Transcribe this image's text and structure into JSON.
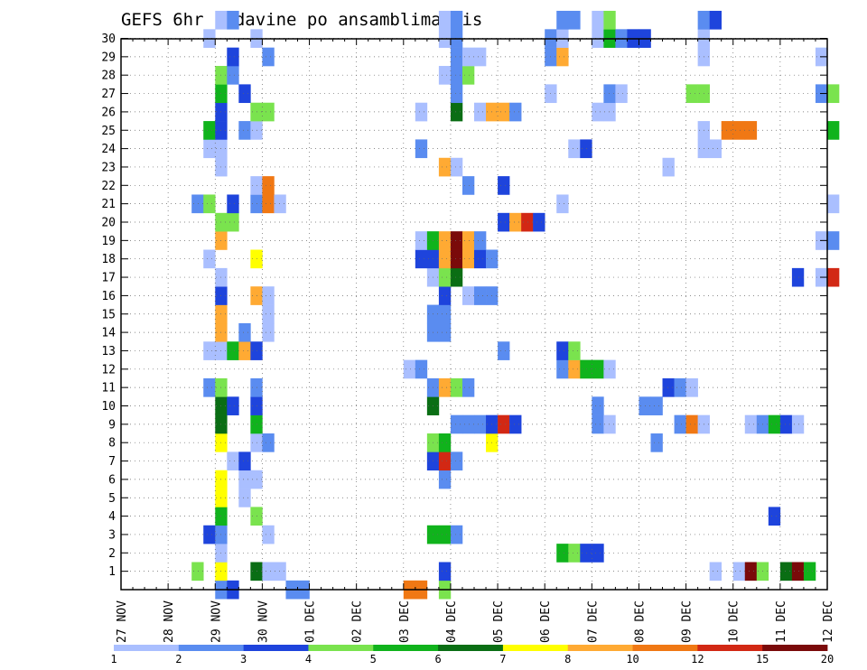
{
  "chart_data": {
    "type": "heatmap",
    "title": "GEFS 6hr padavine po ansamblima Nis",
    "xlabel": "",
    "ylabel": "",
    "x_ticks": [
      "27 NOV",
      "28 NOV",
      "29 NOV",
      "30 NOV",
      "01 DEC",
      "02 DEC",
      "03 DEC",
      "04 DEC",
      "05 DEC",
      "06 DEC",
      "07 DEC",
      "08 DEC",
      "09 DEC",
      "10 DEC",
      "11 DEC",
      "12 DEC"
    ],
    "y_ticks": [
      "1",
      "2",
      "3",
      "4",
      "5",
      "6",
      "7",
      "8",
      "9",
      "10",
      "11",
      "12",
      "13",
      "14",
      "15",
      "16",
      "17",
      "18",
      "19",
      "20",
      "21",
      "22",
      "23",
      "24",
      "25",
      "26",
      "27",
      "28",
      "29",
      "30"
    ],
    "xlim": [
      0,
      60
    ],
    "ylim": [
      0,
      30
    ],
    "grid": true,
    "legend": {
      "placement": "bottom",
      "labels": [
        "1",
        "2",
        "3",
        "4",
        "5",
        "6",
        "7",
        "8",
        "10",
        "12",
        "15",
        "20"
      ],
      "colors": [
        "#aabfff",
        "#5a8cf0",
        "#1e44dc",
        "#7ae34e",
        "#10b31c",
        "#0a6e14",
        "#ffff00",
        "#ffaa33",
        "#f07814",
        "#d22814",
        "#7a0a0a"
      ]
    },
    "cells": [
      [
        8,
        0,
        2
      ],
      [
        9,
        0,
        3
      ],
      [
        14,
        0,
        2
      ],
      [
        15,
        0,
        2
      ],
      [
        24,
        0,
        9
      ],
      [
        25,
        0,
        9
      ],
      [
        27,
        0,
        4
      ],
      [
        6,
        1,
        4
      ],
      [
        8,
        1,
        7
      ],
      [
        11,
        1,
        6
      ],
      [
        12,
        1,
        1
      ],
      [
        13,
        1,
        1
      ],
      [
        27,
        1,
        3
      ],
      [
        50,
        1,
        1
      ],
      [
        52,
        1,
        1
      ],
      [
        53,
        1,
        11
      ],
      [
        54,
        1,
        4
      ],
      [
        56,
        1,
        6
      ],
      [
        57,
        1,
        11
      ],
      [
        58,
        1,
        5
      ],
      [
        8,
        2,
        1
      ],
      [
        37,
        2,
        5
      ],
      [
        38,
        2,
        4
      ],
      [
        39,
        2,
        3
      ],
      [
        40,
        2,
        3
      ],
      [
        7,
        3,
        3
      ],
      [
        8,
        3,
        2
      ],
      [
        12,
        3,
        1
      ],
      [
        26,
        3,
        5
      ],
      [
        27,
        3,
        5
      ],
      [
        28,
        3,
        2
      ],
      [
        8,
        4,
        5
      ],
      [
        11,
        4,
        4
      ],
      [
        55,
        4,
        3
      ],
      [
        8,
        5,
        7
      ],
      [
        10,
        5,
        1
      ],
      [
        8,
        6,
        7
      ],
      [
        10,
        6,
        1
      ],
      [
        11,
        6,
        1
      ],
      [
        27,
        6,
        2
      ],
      [
        9,
        7,
        1
      ],
      [
        10,
        7,
        3
      ],
      [
        26,
        7,
        3
      ],
      [
        27,
        7,
        10
      ],
      [
        28,
        7,
        2
      ],
      [
        8,
        8,
        7
      ],
      [
        11,
        8,
        1
      ],
      [
        12,
        8,
        2
      ],
      [
        26,
        8,
        4
      ],
      [
        27,
        8,
        5
      ],
      [
        31,
        8,
        7
      ],
      [
        45,
        8,
        2
      ],
      [
        8,
        9,
        6
      ],
      [
        11,
        9,
        5
      ],
      [
        28,
        9,
        2
      ],
      [
        29,
        9,
        2
      ],
      [
        30,
        9,
        2
      ],
      [
        31,
        9,
        3
      ],
      [
        32,
        9,
        10
      ],
      [
        33,
        9,
        3
      ],
      [
        40,
        9,
        2
      ],
      [
        41,
        9,
        1
      ],
      [
        47,
        9,
        2
      ],
      [
        48,
        9,
        9
      ],
      [
        49,
        9,
        1
      ],
      [
        53,
        9,
        1
      ],
      [
        54,
        9,
        2
      ],
      [
        55,
        9,
        5
      ],
      [
        56,
        9,
        3
      ],
      [
        57,
        9,
        1
      ],
      [
        8,
        10,
        6
      ],
      [
        9,
        10,
        3
      ],
      [
        11,
        10,
        3
      ],
      [
        26,
        10,
        6
      ],
      [
        40,
        10,
        2
      ],
      [
        44,
        10,
        2
      ],
      [
        45,
        10,
        2
      ],
      [
        7,
        11,
        2
      ],
      [
        8,
        11,
        4
      ],
      [
        11,
        11,
        2
      ],
      [
        26,
        11,
        2
      ],
      [
        27,
        11,
        8
      ],
      [
        28,
        11,
        4
      ],
      [
        29,
        11,
        2
      ],
      [
        46,
        11,
        3
      ],
      [
        47,
        11,
        2
      ],
      [
        48,
        11,
        1
      ],
      [
        24,
        12,
        1
      ],
      [
        25,
        12,
        2
      ],
      [
        37,
        12,
        2
      ],
      [
        38,
        12,
        8
      ],
      [
        39,
        12,
        5
      ],
      [
        40,
        12,
        5
      ],
      [
        41,
        12,
        1
      ],
      [
        7,
        13,
        1
      ],
      [
        8,
        13,
        1
      ],
      [
        9,
        13,
        5
      ],
      [
        10,
        13,
        8
      ],
      [
        11,
        13,
        3
      ],
      [
        32,
        13,
        2
      ],
      [
        37,
        13,
        3
      ],
      [
        38,
        13,
        4
      ],
      [
        8,
        14,
        8
      ],
      [
        10,
        14,
        2
      ],
      [
        12,
        14,
        1
      ],
      [
        26,
        14,
        2
      ],
      [
        27,
        14,
        2
      ],
      [
        8,
        15,
        8
      ],
      [
        12,
        15,
        1
      ],
      [
        26,
        15,
        2
      ],
      [
        27,
        15,
        2
      ],
      [
        8,
        16,
        3
      ],
      [
        11,
        16,
        8
      ],
      [
        12,
        16,
        1
      ],
      [
        27,
        16,
        3
      ],
      [
        29,
        16,
        1
      ],
      [
        30,
        16,
        2
      ],
      [
        31,
        16,
        2
      ],
      [
        8,
        17,
        1
      ],
      [
        26,
        17,
        1
      ],
      [
        27,
        17,
        4
      ],
      [
        28,
        17,
        6
      ],
      [
        57,
        17,
        3
      ],
      [
        59,
        17,
        1
      ],
      [
        60,
        17,
        10
      ],
      [
        7,
        18,
        1
      ],
      [
        11,
        18,
        7
      ],
      [
        25,
        18,
        3
      ],
      [
        26,
        18,
        3
      ],
      [
        27,
        18,
        8
      ],
      [
        28,
        18,
        11
      ],
      [
        29,
        18,
        8
      ],
      [
        30,
        18,
        3
      ],
      [
        31,
        18,
        2
      ],
      [
        8,
        19,
        8
      ],
      [
        25,
        19,
        1
      ],
      [
        26,
        19,
        5
      ],
      [
        27,
        19,
        8
      ],
      [
        28,
        19,
        11
      ],
      [
        29,
        19,
        8
      ],
      [
        30,
        19,
        2
      ],
      [
        59,
        19,
        1
      ],
      [
        60,
        19,
        2
      ],
      [
        8,
        20,
        4
      ],
      [
        9,
        20,
        4
      ],
      [
        32,
        20,
        3
      ],
      [
        33,
        20,
        8
      ],
      [
        34,
        20,
        10
      ],
      [
        35,
        20,
        3
      ],
      [
        6,
        21,
        2
      ],
      [
        7,
        21,
        4
      ],
      [
        9,
        21,
        3
      ],
      [
        11,
        21,
        2
      ],
      [
        12,
        21,
        9
      ],
      [
        13,
        21,
        1
      ],
      [
        37,
        21,
        1
      ],
      [
        60,
        21,
        1
      ],
      [
        11,
        22,
        1
      ],
      [
        12,
        22,
        9
      ],
      [
        29,
        22,
        2
      ],
      [
        32,
        22,
        3
      ],
      [
        8,
        23,
        1
      ],
      [
        27,
        23,
        8
      ],
      [
        28,
        23,
        1
      ],
      [
        46,
        23,
        1
      ],
      [
        7,
        24,
        1
      ],
      [
        8,
        24,
        1
      ],
      [
        25,
        24,
        2
      ],
      [
        38,
        24,
        1
      ],
      [
        39,
        24,
        3
      ],
      [
        49,
        24,
        1
      ],
      [
        50,
        24,
        1
      ],
      [
        7,
        25,
        5
      ],
      [
        8,
        25,
        3
      ],
      [
        10,
        25,
        2
      ],
      [
        11,
        25,
        1
      ],
      [
        49,
        25,
        1
      ],
      [
        51,
        25,
        9
      ],
      [
        52,
        25,
        9
      ],
      [
        53,
        25,
        9
      ],
      [
        60,
        25,
        5
      ],
      [
        8,
        26,
        3
      ],
      [
        11,
        26,
        4
      ],
      [
        12,
        26,
        4
      ],
      [
        25,
        26,
        1
      ],
      [
        28,
        26,
        6
      ],
      [
        30,
        26,
        1
      ],
      [
        31,
        26,
        8
      ],
      [
        32,
        26,
        8
      ],
      [
        33,
        26,
        2
      ],
      [
        40,
        26,
        1
      ],
      [
        41,
        26,
        1
      ],
      [
        8,
        27,
        5
      ],
      [
        10,
        27,
        3
      ],
      [
        28,
        27,
        2
      ],
      [
        36,
        27,
        1
      ],
      [
        41,
        27,
        2
      ],
      [
        42,
        27,
        1
      ],
      [
        48,
        27,
        4
      ],
      [
        49,
        27,
        4
      ],
      [
        59,
        27,
        2
      ],
      [
        60,
        27,
        4
      ],
      [
        8,
        28,
        4
      ],
      [
        9,
        28,
        2
      ],
      [
        27,
        28,
        1
      ],
      [
        28,
        28,
        2
      ],
      [
        29,
        28,
        4
      ],
      [
        9,
        29,
        3
      ],
      [
        12,
        29,
        2
      ],
      [
        28,
        29,
        2
      ],
      [
        29,
        29,
        1
      ],
      [
        30,
        29,
        1
      ],
      [
        36,
        29,
        2
      ],
      [
        37,
        29,
        8
      ],
      [
        49,
        29,
        1
      ],
      [
        59,
        29,
        1
      ],
      [
        7,
        30,
        1
      ],
      [
        11,
        30,
        1
      ],
      [
        27,
        30,
        1
      ],
      [
        28,
        30,
        2
      ],
      [
        36,
        30,
        2
      ],
      [
        37,
        30,
        1
      ],
      [
        40,
        30,
        1
      ],
      [
        41,
        30,
        5
      ],
      [
        42,
        30,
        2
      ],
      [
        43,
        30,
        3
      ],
      [
        44,
        30,
        3
      ],
      [
        49,
        30,
        1
      ],
      [
        8,
        31,
        1
      ],
      [
        9,
        31,
        2
      ],
      [
        27,
        31,
        1
      ],
      [
        28,
        31,
        2
      ],
      [
        37,
        31,
        2
      ],
      [
        38,
        31,
        2
      ],
      [
        40,
        31,
        1
      ],
      [
        41,
        31,
        4
      ],
      [
        49,
        31,
        2
      ],
      [
        50,
        31,
        3
      ]
    ]
  }
}
